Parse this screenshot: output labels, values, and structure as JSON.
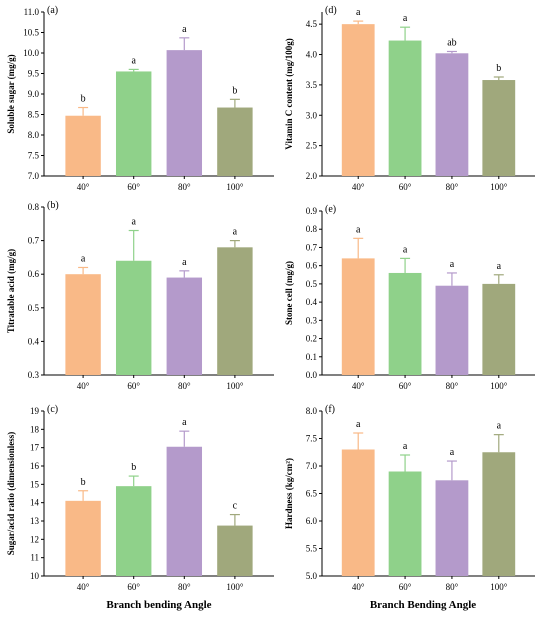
{
  "colors": [
    "#F9B987",
    "#8FD18A",
    "#B49ACB",
    "#A0A87C"
  ],
  "bottom_xlabels": {
    "left": "Branch bending Angle",
    "right": "Branch Bending Angle"
  },
  "chart_data": [
    {
      "type": "bar",
      "panel": "(a)",
      "ylabel": "Soluble sugar (mg/g)",
      "categories": [
        "40°",
        "60°",
        "80°",
        "100°"
      ],
      "values": [
        8.47,
        9.55,
        10.07,
        8.67
      ],
      "errors": [
        0.2,
        0.05,
        0.3,
        0.2
      ],
      "letters": [
        "b",
        "a",
        "a",
        "b"
      ],
      "ylim": [
        7.0,
        11.0
      ],
      "yticks": [
        "7.0",
        "7.5",
        "8.0",
        "8.5",
        "9.0",
        "9.5",
        "10.0",
        "10.5",
        "11.0"
      ]
    },
    {
      "type": "bar",
      "panel": "(d)",
      "ylabel": "Vitamin C content (mg/100g)",
      "categories": [
        "40°",
        "60°",
        "80°",
        "100°"
      ],
      "values": [
        4.5,
        4.23,
        4.02,
        3.58
      ],
      "errors": [
        0.05,
        0.22,
        0.03,
        0.05
      ],
      "letters": [
        "a",
        "a",
        "ab",
        "b"
      ],
      "ylim": [
        2.0,
        4.7
      ],
      "yticks": [
        "2.0",
        "2.5",
        "3.0",
        "3.5",
        "4.0",
        "4.5"
      ]
    },
    {
      "type": "bar",
      "panel": "(b)",
      "ylabel": "Titratable acid (mg/g)",
      "categories": [
        "40°",
        "60°",
        "80°",
        "100°"
      ],
      "values": [
        0.6,
        0.64,
        0.59,
        0.68
      ],
      "errors": [
        0.02,
        0.09,
        0.02,
        0.02
      ],
      "letters": [
        "a",
        "a",
        "a",
        "a"
      ],
      "ylim": [
        0.3,
        0.8
      ],
      "yticks": [
        "0.3",
        "0.4",
        "0.5",
        "0.6",
        "0.7",
        "0.8"
      ]
    },
    {
      "type": "bar",
      "panel": "(e)",
      "ylabel": "Stone cell (mg/g)",
      "categories": [
        "40°",
        "60°",
        "80°",
        "100°"
      ],
      "values": [
        0.64,
        0.56,
        0.49,
        0.5
      ],
      "errors": [
        0.11,
        0.08,
        0.07,
        0.05
      ],
      "letters": [
        "a",
        "a",
        "a",
        "a"
      ],
      "ylim": [
        0.0,
        0.9
      ],
      "yticks": [
        "0.0",
        "0.1",
        "0.2",
        "0.3",
        "0.4",
        "0.5",
        "0.6",
        "0.7",
        "0.8",
        "0.9"
      ]
    },
    {
      "type": "bar",
      "panel": "(c)",
      "ylabel": "Sugar/acid ratio (dimensionless)",
      "categories": [
        "40°",
        "60°",
        "80°",
        "100°"
      ],
      "values": [
        14.1,
        14.9,
        17.05,
        12.75
      ],
      "errors": [
        0.55,
        0.55,
        0.85,
        0.6
      ],
      "letters": [
        "b",
        "b",
        "a",
        "c"
      ],
      "ylim": [
        10,
        19
      ],
      "yticks": [
        "10",
        "11",
        "12",
        "13",
        "14",
        "15",
        "16",
        "17",
        "18",
        "19"
      ]
    },
    {
      "type": "bar",
      "panel": "(f)",
      "ylabel": "Hardness (kg/cm²)",
      "categories": [
        "40°",
        "60°",
        "80°",
        "100°"
      ],
      "values": [
        7.3,
        6.9,
        6.74,
        7.25
      ],
      "errors": [
        0.3,
        0.3,
        0.35,
        0.32
      ],
      "letters": [
        "a",
        "a",
        "a",
        "a"
      ],
      "ylim": [
        5.0,
        8.0
      ],
      "yticks": [
        "5.0",
        "5.5",
        "6.0",
        "6.5",
        "7.0",
        "7.5",
        "8.0"
      ]
    }
  ]
}
